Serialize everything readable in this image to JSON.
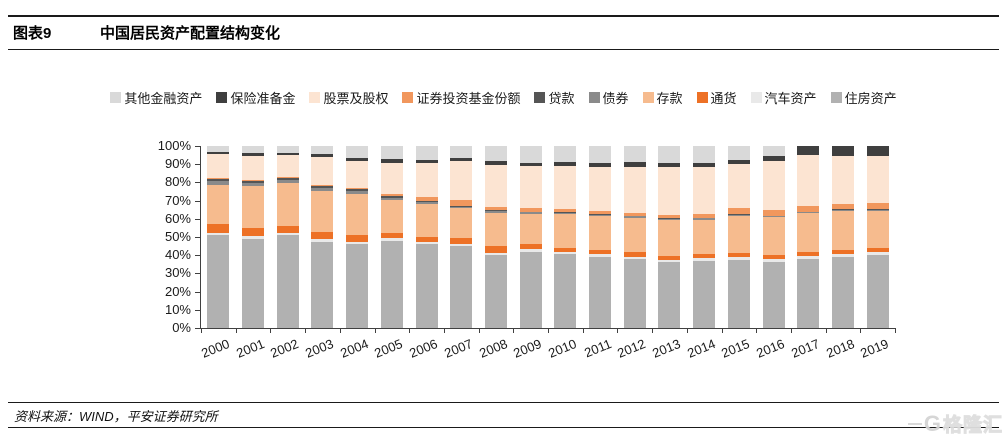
{
  "header": {
    "figure_label": "图表9",
    "title": "中国居民资产配置结构变化"
  },
  "source": {
    "text": "资料来源：WIND，平安证券研究所"
  },
  "watermark": {
    "letter": "G",
    "text": "格隆汇"
  },
  "chart_data": {
    "type": "bar",
    "subtype": "stacked-100-percent",
    "title": "中国居民资产配置结构变化",
    "gridlines": false,
    "legend_position": "top",
    "legend_display_order": "reverse-of-stack",
    "ylim": [
      0,
      100
    ],
    "y_ticks": [
      "100%",
      "90%",
      "80%",
      "70%",
      "60%",
      "50%",
      "40%",
      "30%",
      "20%",
      "10%",
      "0%"
    ],
    "categories": [
      "2000",
      "2001",
      "2002",
      "2003",
      "2004",
      "2005",
      "2006",
      "2007",
      "2008",
      "2009",
      "2010",
      "2011",
      "2012",
      "2013",
      "2014",
      "2015",
      "2016",
      "2017",
      "2018",
      "2019"
    ],
    "series": [
      {
        "name": "住房资产",
        "color": "#b1b1b1",
        "values": [
          51.0,
          49.0,
          51.0,
          47.5,
          46.0,
          48.0,
          46.0,
          45.2,
          40.0,
          42.0,
          40.4,
          39.0,
          37.8,
          36.0,
          36.9,
          37.2,
          36.5,
          38.0,
          39.0,
          40.1
        ]
      },
      {
        "name": "汽车资产",
        "color": "#e9e9e9",
        "values": [
          1.3,
          1.3,
          1.3,
          1.3,
          1.3,
          1.2,
          1.2,
          1.2,
          1.3,
          1.3,
          1.3,
          1.4,
          1.4,
          1.4,
          1.4,
          1.6,
          1.6,
          1.6,
          1.6,
          1.6
        ]
      },
      {
        "name": "通货",
        "color": "#ed7126",
        "values": [
          4.6,
          4.5,
          4.0,
          4.0,
          4.0,
          3.0,
          3.0,
          2.8,
          3.5,
          2.7,
          2.5,
          2.6,
          2.5,
          2.4,
          2.3,
          2.4,
          2.3,
          2.4,
          2.3,
          2.3
        ]
      },
      {
        "name": "存款",
        "color": "#f6bb8e",
        "values": [
          21.8,
          23.0,
          23.5,
          22.5,
          22.5,
          18.0,
          17.7,
          16.5,
          18.5,
          16.8,
          18.4,
          18.6,
          19.0,
          19.5,
          19.0,
          20.5,
          20.5,
          21.0,
          21.5,
          20.5
        ]
      },
      {
        "name": "债券",
        "color": "#8a8a8a",
        "values": [
          2.0,
          1.8,
          1.8,
          1.9,
          1.7,
          1.5,
          1.2,
          0.8,
          1.0,
          0.8,
          0.7,
          0.7,
          0.7,
          0.6,
          0.6,
          0.5,
          0.5,
          0.5,
          0.5,
          0.5
        ]
      },
      {
        "name": "贷款",
        "color": "#555555",
        "values": [
          1.2,
          1.2,
          1.0,
          0.9,
          0.9,
          0.7,
          0.5,
          0.5,
          0.5,
          0.4,
          0.3,
          0.3,
          0.3,
          0.3,
          0.3,
          0.3,
          0.3,
          0.3,
          0.3,
          0.3
        ]
      },
      {
        "name": "证券投资基金份额",
        "color": "#f1975d",
        "values": [
          0.4,
          0.4,
          0.4,
          0.4,
          0.5,
          1.5,
          2.5,
          3.2,
          1.5,
          1.8,
          1.6,
          1.6,
          1.7,
          1.8,
          2.0,
          3.4,
          3.0,
          3.4,
          3.0,
          3.2
        ]
      },
      {
        "name": "股票及股权",
        "color": "#fce4d2",
        "values": [
          13.6,
          13.6,
          12.0,
          15.5,
          14.8,
          17.0,
          18.5,
          21.5,
          23.5,
          23.0,
          24.0,
          24.5,
          25.3,
          26.5,
          26.0,
          24.0,
          27.3,
          27.8,
          26.1,
          25.8
        ]
      },
      {
        "name": "保险准备金",
        "color": "#3f3f3f",
        "values": [
          1.1,
          1.4,
          1.4,
          1.4,
          1.8,
          1.8,
          1.8,
          1.6,
          1.8,
          1.7,
          2.1,
          2.2,
          2.3,
          2.3,
          2.2,
          2.3,
          2.5,
          5.0,
          5.7,
          5.7
        ]
      },
      {
        "name": "其他金融资产",
        "color": "#d9d9d9",
        "values": [
          3.0,
          3.8,
          3.6,
          4.6,
          6.5,
          7.3,
          7.6,
          6.7,
          8.4,
          9.5,
          8.7,
          9.1,
          9.0,
          9.2,
          9.3,
          7.8,
          5.5,
          0.0,
          0.0,
          0.0
        ]
      }
    ]
  }
}
